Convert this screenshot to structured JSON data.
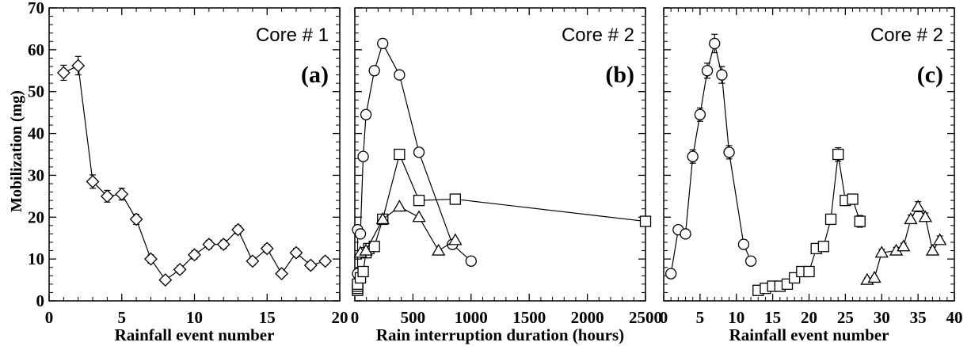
{
  "ylabel": "Mobilization (mg)",
  "chart_data": [
    {
      "type": "scatter",
      "core_label": "Core # 1",
      "panel_label": "(a)",
      "xlabel": "Rainfall event number",
      "xlim": [
        0,
        20
      ],
      "ylim": [
        0,
        70
      ],
      "xticks": [
        "0",
        "5",
        "10",
        "15",
        "20"
      ],
      "yticks": [
        "0",
        "10",
        "20",
        "30",
        "40",
        "50",
        "60",
        "70"
      ],
      "series": [
        {
          "marker": "diamond",
          "x": [
            1,
            2,
            3,
            4,
            5,
            6,
            7,
            8,
            9,
            10,
            11,
            12,
            13,
            14,
            15,
            16,
            17,
            18,
            19
          ],
          "y": [
            54.5,
            56.2,
            28.5,
            25.0,
            25.5,
            19.5,
            10.0,
            5.0,
            7.5,
            11.0,
            13.5,
            13.5,
            17.0,
            9.5,
            12.5,
            6.5,
            11.5,
            8.5,
            9.5
          ],
          "err": [
            1.8,
            2.2,
            1.6,
            1.4,
            1.4,
            1.2,
            1.0,
            0.8,
            0.9,
            1.0,
            1.0,
            1.0,
            1.0,
            0.9,
            1.0,
            0.8,
            1.0,
            0.9,
            0.9
          ]
        }
      ]
    },
    {
      "type": "scatter",
      "core_label": "Core # 2",
      "panel_label": "(b)",
      "xlabel": "Rain interruption duration (hours)",
      "xlim": [
        0,
        2500
      ],
      "ylim": [
        0,
        70
      ],
      "xticks": [
        "0",
        "500",
        "1000",
        "1500",
        "2000",
        "2500"
      ],
      "yticks": [],
      "series": [
        {
          "marker": "circle",
          "x": [
            24,
            24,
            48,
            72,
            96,
            168,
            240,
            384,
            552,
            840,
            1000
          ],
          "y": [
            6.5,
            17.0,
            16.0,
            34.5,
            44.5,
            55.0,
            61.5,
            54.0,
            35.5,
            13.5,
            9.5
          ]
        },
        {
          "marker": "square",
          "x": [
            24,
            24,
            24,
            24,
            48,
            72,
            96,
            120,
            168,
            240,
            384,
            552,
            864,
            2500
          ],
          "y": [
            2.5,
            3.0,
            3.5,
            4.0,
            5.5,
            7.0,
            11.5,
            12.5,
            13.0,
            19.5,
            35.0,
            24.0,
            24.3,
            19.0
          ]
        },
        {
          "marker": "triangle",
          "x": [
            48,
            96,
            240,
            384,
            552,
            720,
            864
          ],
          "y": [
            11.5,
            12.0,
            19.5,
            22.5,
            20.0,
            12.0,
            14.5
          ]
        }
      ]
    },
    {
      "type": "scatter",
      "core_label": "Core # 2",
      "panel_label": "(c)",
      "xlabel": "Rainfall event number",
      "xlim": [
        0,
        40
      ],
      "ylim": [
        0,
        70
      ],
      "xticks": [
        "0",
        "5",
        "10",
        "15",
        "20",
        "25",
        "30",
        "35",
        "40"
      ],
      "yticks": [],
      "series": [
        {
          "marker": "circle",
          "x": [
            1,
            2,
            3,
            4,
            5,
            6,
            7,
            8,
            9,
            11,
            12
          ],
          "y": [
            6.5,
            17.0,
            16.0,
            34.5,
            44.5,
            55.0,
            61.5,
            54.0,
            35.5,
            13.5,
            9.5
          ],
          "err": [
            0.6,
            0.8,
            0.8,
            1.6,
            1.6,
            1.8,
            2.2,
            2.0,
            1.6,
            1.0,
            1.0
          ]
        },
        {
          "marker": "square",
          "x": [
            13,
            14,
            15,
            16,
            17,
            18,
            19,
            20,
            21,
            22,
            23,
            24,
            25,
            26,
            27
          ],
          "y": [
            2.5,
            3.0,
            3.5,
            3.5,
            4.0,
            5.5,
            7.0,
            7.0,
            12.5,
            13.0,
            19.5,
            35.0,
            24.0,
            24.3,
            19.0
          ],
          "err": [
            0.5,
            0.5,
            0.5,
            0.5,
            0.5,
            0.6,
            0.7,
            0.7,
            0.9,
            0.9,
            1.0,
            1.6,
            1.2,
            1.2,
            1.4
          ]
        },
        {
          "marker": "triangle",
          "x": [
            28,
            29,
            30,
            32,
            33,
            34,
            35,
            36,
            37,
            38
          ],
          "y": [
            5.0,
            5.5,
            11.5,
            12.0,
            13.0,
            19.5,
            22.5,
            20.0,
            12.0,
            14.5
          ],
          "err": [
            0.5,
            0.5,
            0.8,
            0.8,
            0.8,
            1.0,
            1.2,
            1.0,
            0.8,
            1.0
          ]
        }
      ]
    }
  ]
}
